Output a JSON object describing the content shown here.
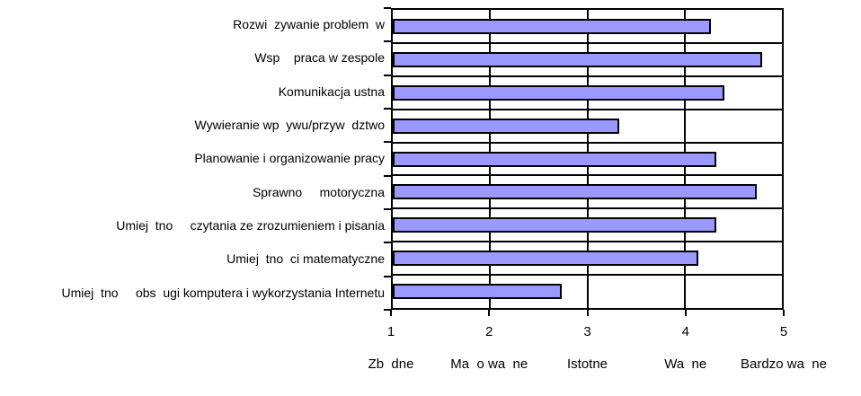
{
  "chart_data": {
    "type": "bar",
    "orientation": "horizontal",
    "title": "",
    "categories": [
      "Rozwi  zywanie problem  w",
      "Wsp    praca w zespole",
      "Komunikacja ustna",
      "Wywieranie wp  ywu/przyw  dztwo",
      "Planowanie i organizowanie pracy",
      "Sprawno     motoryczna",
      "Umiej  tno     czytania ze zrozumieniem i pisania",
      "Umiej  tno  ci matematyczne",
      "Umiej  tno     obs  ugi komputera i wykorzystania Internetu"
    ],
    "values": [
      4.27,
      4.8,
      4.41,
      3.33,
      4.33,
      4.74,
      4.33,
      4.14,
      2.74
    ],
    "xlim": [
      1,
      5
    ],
    "x_tick_values": [
      "1",
      "2",
      "3",
      "4",
      "5"
    ],
    "x_tick_words": [
      "Zb  dne",
      "Ma  o wa  ne",
      "Istotne",
      "Wa  ne",
      "Bardzo wa  ne"
    ],
    "bar_fill": "#9999ff",
    "bar_border": "#000000",
    "grid": "vertical gridlines at integer values; horizontal lines at category boundaries",
    "legend": "none",
    "ylabel": "",
    "xlabel": ""
  }
}
